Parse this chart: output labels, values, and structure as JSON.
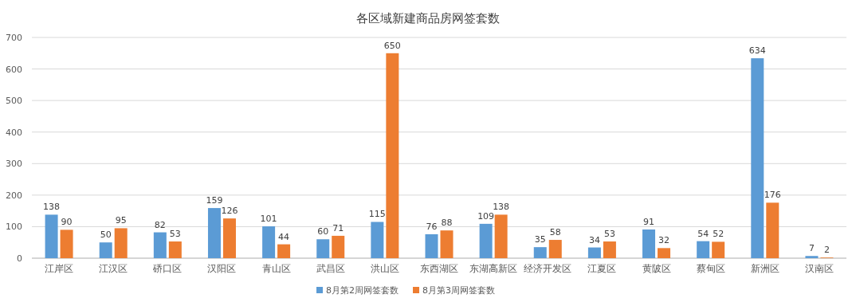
{
  "chart_data": {
    "type": "bar",
    "title": "各区域新建商品房网签套数",
    "categories": [
      "江岸区",
      "江汉区",
      "硚口区",
      "汉阳区",
      "青山区",
      "武昌区",
      "洪山区",
      "东西湖区",
      "东湖高新区",
      "经济开发区",
      "江夏区",
      "黄陂区",
      "蔡甸区",
      "新洲区",
      "汉南区"
    ],
    "series": [
      {
        "name": "8月第2周网签套数",
        "color": "#5b9bd5",
        "values": [
          138,
          50,
          82,
          159,
          101,
          60,
          115,
          76,
          109,
          35,
          34,
          91,
          54,
          634,
          7
        ]
      },
      {
        "name": "8月第3周网签套数",
        "color": "#ed7d31",
        "values": [
          90,
          95,
          53,
          126,
          44,
          71,
          650,
          88,
          138,
          58,
          53,
          32,
          52,
          176,
          2
        ]
      }
    ],
    "ylim": [
      0,
      700
    ],
    "yticks": [
      0,
      100,
      200,
      300,
      400,
      500,
      600,
      700
    ],
    "grid": "y",
    "legend": "bottom",
    "data_labels": true
  }
}
